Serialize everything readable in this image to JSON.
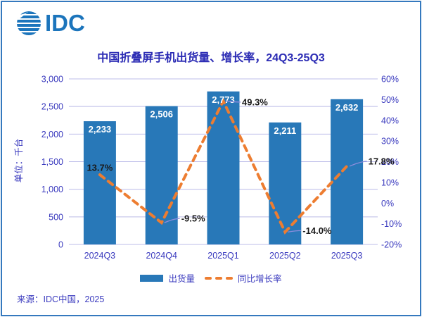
{
  "logo": {
    "text": "IDC"
  },
  "header": {
    "title": "中国折叠屏手机出货量、增长率，24Q3-25Q3"
  },
  "chart_data": {
    "type": "bar",
    "title": "中国折叠屏手机出货量、增长率，24Q3-25Q3",
    "categories": [
      "2024Q3",
      "2024Q4",
      "2025Q1",
      "2025Q2",
      "2025Q3"
    ],
    "series": [
      {
        "name": "出货量",
        "type": "bar",
        "axis": "left",
        "values": [
          2233,
          2506,
          2773,
          2211,
          2632
        ],
        "labels": [
          "2,233",
          "2,506",
          "2,773",
          "2,211",
          "2,632"
        ],
        "color": "#2878B8"
      },
      {
        "name": "同比增长率",
        "type": "line",
        "axis": "right",
        "values": [
          13.7,
          -9.5,
          49.3,
          -14.0,
          17.8
        ],
        "labels": [
          "13.7%",
          "-9.5%",
          "49.3%",
          "-14.0%",
          "17.8%"
        ],
        "color": "#ED7D31",
        "dash": true
      }
    ],
    "left_axis": {
      "label": "单位：千台",
      "min": 0,
      "max": 3000,
      "step": 500,
      "ticks": [
        "3,000",
        "2,500",
        "2,000",
        "1,500",
        "1,000",
        "500",
        "0"
      ]
    },
    "right_axis": {
      "min": -20,
      "max": 60,
      "step": 10,
      "ticks": [
        "60%",
        "50%",
        "40%",
        "30%",
        "20%",
        "10%",
        "0%",
        "-10%",
        "-20%"
      ]
    },
    "grid": true,
    "legend_position": "bottom",
    "colors": {
      "bar": "#2878B8",
      "line": "#ED7D31",
      "title": "#2B2BB4",
      "axis_text": "#3939BE",
      "point_label": "#1a1a1a",
      "bar_label": "#ffffff",
      "gridline": "#BCBCE8",
      "leader": "#8C8CDC",
      "logo": "#1C75BC",
      "border": "#3579BE"
    }
  },
  "footer": {
    "source": "来源：IDC中国，2025"
  }
}
